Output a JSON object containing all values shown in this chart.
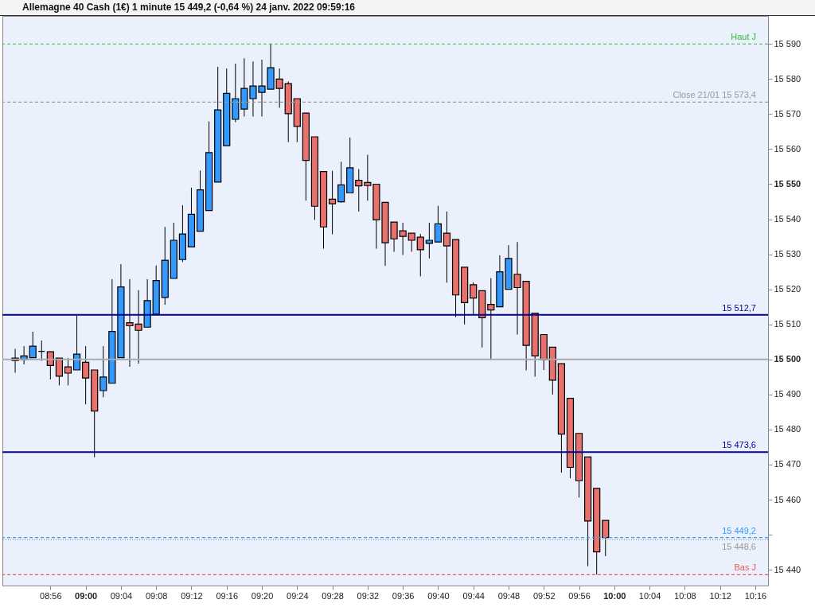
{
  "chart_data": {
    "type": "candlestick",
    "title": "Allemagne 40 Cash (1€) 1 minute 15 449,2 (-0,64 %) 24 janv. 2022 09:59:16",
    "x": [
      "2022-01-24T08:52",
      "2022-01-24T08:53",
      "2022-01-24T08:54",
      "2022-01-24T08:55",
      "2022-01-24T08:56",
      "2022-01-24T08:57",
      "2022-01-24T08:58",
      "2022-01-24T08:59",
      "2022-01-24T09:00",
      "2022-01-24T09:01",
      "2022-01-24T09:02",
      "2022-01-24T09:03",
      "2022-01-24T09:04",
      "2022-01-24T09:05",
      "2022-01-24T09:06",
      "2022-01-24T09:07",
      "2022-01-24T09:08",
      "2022-01-24T09:09",
      "2022-01-24T09:10",
      "2022-01-24T09:11",
      "2022-01-24T09:12",
      "2022-01-24T09:13",
      "2022-01-24T09:14",
      "2022-01-24T09:15",
      "2022-01-24T09:16",
      "2022-01-24T09:17",
      "2022-01-24T09:18",
      "2022-01-24T09:19",
      "2022-01-24T09:20",
      "2022-01-24T09:21",
      "2022-01-24T09:22",
      "2022-01-24T09:23",
      "2022-01-24T09:24",
      "2022-01-24T09:25",
      "2022-01-24T09:26",
      "2022-01-24T09:27",
      "2022-01-24T09:28",
      "2022-01-24T09:29",
      "2022-01-24T09:30",
      "2022-01-24T09:31",
      "2022-01-24T09:32",
      "2022-01-24T09:33",
      "2022-01-24T09:34",
      "2022-01-24T09:35",
      "2022-01-24T09:36",
      "2022-01-24T09:37",
      "2022-01-24T09:38",
      "2022-01-24T09:39",
      "2022-01-24T09:40",
      "2022-01-24T09:41",
      "2022-01-24T09:42",
      "2022-01-24T09:43",
      "2022-01-24T09:44",
      "2022-01-24T09:45",
      "2022-01-24T09:46",
      "2022-01-24T09:47",
      "2022-01-24T09:48",
      "2022-01-24T09:49",
      "2022-01-24T09:50",
      "2022-01-24T09:51",
      "2022-01-24T09:52",
      "2022-01-24T09:53",
      "2022-01-24T09:54",
      "2022-01-24T09:55",
      "2022-01-24T09:56",
      "2022-01-24T09:57",
      "2022-01-24T09:58",
      "2022-01-24T09:59"
    ],
    "ohlc": [
      [
        15500.4,
        15503,
        15496.2,
        15499.7
      ],
      [
        15499.9,
        15503.8,
        15498.6,
        15501
      ],
      [
        15500.5,
        15507.9,
        15500.5,
        15503.8
      ],
      [
        15502.3,
        15505.4,
        15499.6,
        15502.3
      ],
      [
        15502.2,
        15502.3,
        15494.3,
        15498.3
      ],
      [
        15500.4,
        15500.4,
        15492.6,
        15495.2
      ],
      [
        15497.9,
        15500.4,
        15492.6,
        15496.1
      ],
      [
        15497,
        15512.5,
        15497,
        15501.5
      ],
      [
        15499.2,
        15503.8,
        15487.2,
        15494.7
      ],
      [
        15497,
        15497,
        15472.1,
        15485.3
      ],
      [
        15491.1,
        15503.8,
        15489.2,
        15495
      ],
      [
        15493.2,
        15522.9,
        15493.2,
        15508
      ],
      [
        15500.5,
        15527.2,
        15500.5,
        15520.7
      ],
      [
        15510.5,
        15522.9,
        15497.9,
        15509.6
      ],
      [
        15510.1,
        15519.8,
        15498.8,
        15508.3
      ],
      [
        15509.2,
        15522.9,
        15509.2,
        15516.8
      ],
      [
        15512.9,
        15526.8,
        15512.9,
        15522.5
      ],
      [
        15517.7,
        15537.8,
        15515.6,
        15528.3
      ],
      [
        15523.1,
        15539,
        15523.1,
        15534
      ],
      [
        15528.5,
        15544,
        15527.8,
        15535.8
      ],
      [
        15532.1,
        15549,
        15532.1,
        15541.4
      ],
      [
        15536.6,
        15553.9,
        15536.6,
        15548.4
      ],
      [
        15542.5,
        15567.9,
        15542.5,
        15559
      ],
      [
        15550.6,
        15583.5,
        15550.6,
        15571.2
      ],
      [
        15561,
        15583,
        15561,
        15575.9
      ],
      [
        15568.5,
        15584.4,
        15567.7,
        15574.4
      ],
      [
        15571.4,
        15585.9,
        15569.3,
        15577.3
      ],
      [
        15574.4,
        15585,
        15569.3,
        15578
      ],
      [
        15576.2,
        15585.5,
        15569.3,
        15578
      ],
      [
        15577.1,
        15590,
        15577.1,
        15583.2
      ],
      [
        15580,
        15583,
        15571.8,
        15577.3
      ],
      [
        15578.7,
        15579.3,
        15562,
        15570.1
      ],
      [
        15574.4,
        15574.4,
        15562,
        15566.5
      ],
      [
        15570.3,
        15570.3,
        15545.3,
        15556.8
      ],
      [
        15563.5,
        15563.5,
        15539.8,
        15543.7
      ],
      [
        15553.6,
        15553.6,
        15531.6,
        15537.8
      ],
      [
        15545.7,
        15553.8,
        15535.7,
        15544.4
      ],
      [
        15545,
        15556.4,
        15544.7,
        15549.8
      ],
      [
        15547.5,
        15563.3,
        15547.5,
        15554.7
      ],
      [
        15551.1,
        15554.3,
        15542.2,
        15549.5
      ],
      [
        15550.5,
        15558.4,
        15545.3,
        15549.6
      ],
      [
        15550,
        15550,
        15531.6,
        15539.8
      ],
      [
        15544.8,
        15544.8,
        15526.7,
        15533.3
      ],
      [
        15539.2,
        15539.2,
        15530.7,
        15534.4
      ],
      [
        15536.7,
        15539,
        15529.8,
        15535.1
      ],
      [
        15536,
        15536,
        15530.7,
        15534
      ],
      [
        15534.9,
        15535.8,
        15523.7,
        15531.3
      ],
      [
        15533.1,
        15539,
        15528.8,
        15534
      ],
      [
        15533.5,
        15543.8,
        15533.5,
        15538.7
      ],
      [
        15536,
        15542.2,
        15521.9,
        15532.4
      ],
      [
        15534.2,
        15534.2,
        15512.1,
        15518.4
      ],
      [
        15526.3,
        15526.3,
        15510,
        15516.2
      ],
      [
        15521.3,
        15522,
        15512.9,
        15517.5
      ],
      [
        15519.6,
        15519.6,
        15503.4,
        15511.9
      ],
      [
        15515.7,
        15523.2,
        15500.1,
        15514.1
      ],
      [
        15515,
        15529.7,
        15515,
        15525
      ],
      [
        15520,
        15532.6,
        15520,
        15528.8
      ],
      [
        15524.3,
        15533.5,
        15507.1,
        15520.5
      ],
      [
        15522.3,
        15522.3,
        15496.9,
        15504
      ],
      [
        15513.2,
        15513.2,
        15495.1,
        15501
      ],
      [
        15507.1,
        15507.1,
        15497,
        15499.9
      ],
      [
        15503.5,
        15503.5,
        15490,
        15494.1
      ],
      [
        15498.8,
        15498.8,
        15467.7,
        15478.7
      ],
      [
        15488.9,
        15488.9,
        15466.1,
        15469.2
      ],
      [
        15478.9,
        15478.9,
        15460.6,
        15465.4
      ],
      [
        15472.2,
        15472.2,
        15441,
        15453.9
      ],
      [
        15463.2,
        15463.2,
        15438.6,
        15445.1
      ],
      [
        15454.1,
        15454.1,
        15443.9,
        15449.2
      ]
    ],
    "colors": [
      "#e8716d",
      "#3399ff",
      "#3399ff",
      "#000000",
      "#e8716d",
      "#e8716d",
      "#e8716d",
      "#3399ff",
      "#e8716d",
      "#e8716d",
      "#3399ff",
      "#3399ff",
      "#3399ff",
      "#e8716d",
      "#e8716d",
      "#3399ff",
      "#3399ff",
      "#3399ff",
      "#3399ff",
      "#3399ff",
      "#3399ff",
      "#3399ff",
      "#3399ff",
      "#3399ff",
      "#3399ff",
      "#3399ff",
      "#3399ff",
      "#3399ff",
      "#3399ff",
      "#3399ff",
      "#e8716d",
      "#e8716d",
      "#e8716d",
      "#e8716d",
      "#e8716d",
      "#e8716d",
      "#e8716d",
      "#3399ff",
      "#3399ff",
      "#e8716d",
      "#e8716d",
      "#e8716d",
      "#e8716d",
      "#e8716d",
      "#e8716d",
      "#e8716d",
      "#e8716d",
      "#3399ff",
      "#3399ff",
      "#e8716d",
      "#e8716d",
      "#e8716d",
      "#e8716d",
      "#e8716d",
      "#e8716d",
      "#3399ff",
      "#3399ff",
      "#e8716d",
      "#e8716d",
      "#e8716d",
      "#e8716d",
      "#e8716d",
      "#e8716d",
      "#e8716d",
      "#e8716d",
      "#e8716d",
      "#e8716d",
      "#e8716d"
    ],
    "xlim": [
      "2022-01-24T08:51",
      "2022-01-24T10:17"
    ],
    "xticks": [
      {
        "value": "2022-01-24T08:56",
        "label": "08:56"
      },
      {
        "value": "2022-01-24T09:00",
        "label": "09:00"
      },
      {
        "value": "2022-01-24T09:04",
        "label": "09:04"
      },
      {
        "value": "2022-01-24T09:08",
        "label": "09:08"
      },
      {
        "value": "2022-01-24T09:12",
        "label": "09:12"
      },
      {
        "value": "2022-01-24T09:16",
        "label": "09:16"
      },
      {
        "value": "2022-01-24T09:20",
        "label": "09:20"
      },
      {
        "value": "2022-01-24T09:24",
        "label": "09:24"
      },
      {
        "value": "2022-01-24T09:28",
        "label": "09:28"
      },
      {
        "value": "2022-01-24T09:32",
        "label": "09:32"
      },
      {
        "value": "2022-01-24T09:36",
        "label": "09:36"
      },
      {
        "value": "2022-01-24T09:40",
        "label": "09:40"
      },
      {
        "value": "2022-01-24T09:44",
        "label": "09:44"
      },
      {
        "value": "2022-01-24T09:48",
        "label": "09:48"
      },
      {
        "value": "2022-01-24T09:52",
        "label": "09:52"
      },
      {
        "value": "2022-01-24T09:56",
        "label": "09:56"
      },
      {
        "value": "2022-01-24T10:00",
        "label": "10:00"
      },
      {
        "value": "2022-01-24T10:04",
        "label": "10:04"
      },
      {
        "value": "2022-01-24T10:08",
        "label": "10:08"
      },
      {
        "value": "2022-01-24T10:12",
        "label": "10:12"
      },
      {
        "value": "2022-01-24T10:16",
        "label": "10:16"
      }
    ],
    "ylim": [
      15435.5,
      15598
    ],
    "yticks": [
      {
        "value": 15440,
        "label": "15 440"
      },
      {
        "value": 15450,
        "label": null
      },
      {
        "value": 15460,
        "label": "15 460"
      },
      {
        "value": 15470,
        "label": "15 470"
      },
      {
        "value": 15480,
        "label": "15 480"
      },
      {
        "value": 15490,
        "label": "15 490"
      },
      {
        "value": 15500,
        "label": "15 500"
      },
      {
        "value": 15510,
        "label": "15 510"
      },
      {
        "value": 15520,
        "label": "15 520"
      },
      {
        "value": 15530,
        "label": "15 530"
      },
      {
        "value": 15540,
        "label": "15 540"
      },
      {
        "value": 15550,
        "label": "15 550"
      },
      {
        "value": 15560,
        "label": "15 560"
      },
      {
        "value": 15570,
        "label": "15 570"
      },
      {
        "value": 15580,
        "label": "15 580"
      },
      {
        "value": 15590,
        "label": "15 590"
      }
    ],
    "ref_lines": [
      {
        "axis": "y",
        "value": 15590,
        "label": "Haut J",
        "color": "#33bb33",
        "line_style": "dashed"
      },
      {
        "axis": "y",
        "value": 15573.4,
        "label": "Close 21/01 15 573,4",
        "color": "#999999",
        "line_style": "dashed"
      },
      {
        "axis": "y",
        "value": 15512.7,
        "label": "15 512,7",
        "color": "#000099",
        "line_style": "solid"
      },
      {
        "axis": "y",
        "value": 15500,
        "color": "#aaaaaa",
        "line_style": "solid"
      },
      {
        "axis": "y",
        "value": 15473.6,
        "label": "15 473,6",
        "color": "#000099",
        "line_style": "solid"
      },
      {
        "axis": "y",
        "value": 15449.2,
        "label": "15 449,2",
        "color": "#3399ff",
        "line_style": "dashed"
      },
      {
        "axis": "y",
        "value": 15448.6,
        "label": "15 448,6",
        "color": "#999999",
        "line_style": "dotted"
      },
      {
        "axis": "y",
        "value": 15438.6,
        "label": "Bas J",
        "color": "#ee5555",
        "line_style": "dashed"
      }
    ],
    "grid": false
  }
}
